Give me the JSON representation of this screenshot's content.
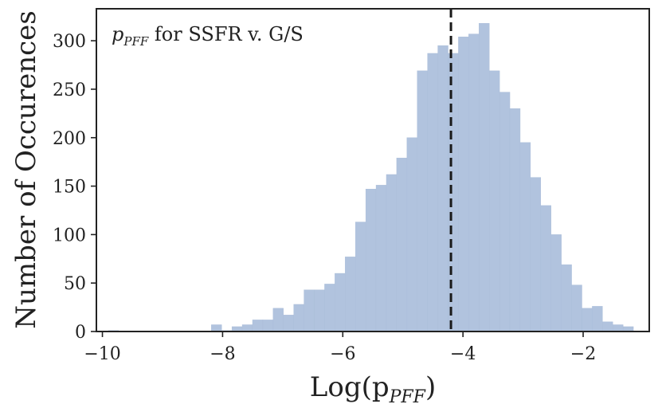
{
  "chart_data": {
    "type": "histogram",
    "annotation": {
      "var": "p",
      "sub": "PFF",
      "text": " for SSFR v. G/S"
    },
    "xlabel": {
      "prefix": "Log(p",
      "sub": "PFF",
      "suffix": ")"
    },
    "ylabel": "Number of Occurences",
    "xlim": [
      -10.1,
      -0.9
    ],
    "ylim": [
      0,
      333
    ],
    "x_ticks": [
      -10,
      -8,
      -6,
      -4,
      -2
    ],
    "x_tick_labels": [
      "−10",
      "−8",
      "−6",
      "−4",
      "−2"
    ],
    "y_ticks": [
      0,
      50,
      100,
      150,
      200,
      250,
      300
    ],
    "y_tick_labels": [
      "0",
      "50",
      "100",
      "150",
      "200",
      "250",
      "300"
    ],
    "bin_start": -9.9,
    "bin_width": 0.1713,
    "counts": [
      1,
      0,
      0,
      0,
      0,
      0,
      0,
      0,
      0,
      0,
      7,
      1,
      5,
      7,
      12,
      12,
      24,
      17,
      28,
      43,
      43,
      49,
      60,
      77,
      113,
      147,
      151,
      162,
      179,
      200,
      269,
      287,
      295,
      287,
      304,
      307,
      318,
      269,
      247,
      230,
      195,
      159,
      130,
      100,
      69,
      48,
      24,
      26,
      10,
      7,
      5
    ],
    "median_line": -4.2,
    "colors": {
      "bar": "#b1c3de",
      "median": "#1a1a1a",
      "axes": "#222222"
    }
  }
}
